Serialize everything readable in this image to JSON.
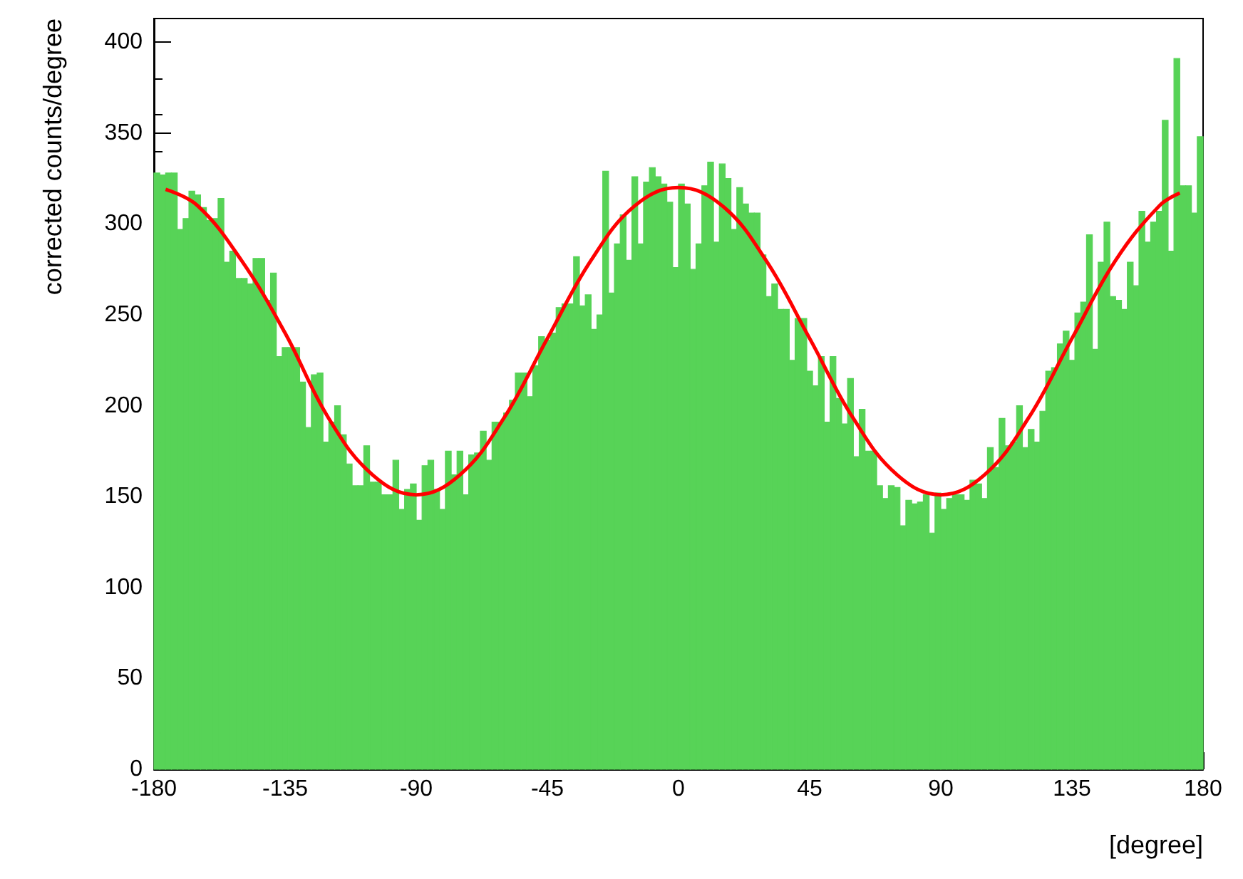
{
  "chart_data": {
    "type": "histogram",
    "xlabel": "[degree]",
    "ylabel": "corrected counts/degree",
    "bins": [
      -180,
      -178,
      -176,
      -174,
      -172,
      -170,
      -168,
      -166,
      -164,
      -162,
      -160,
      -158,
      -156,
      -154,
      -152,
      -150,
      -148,
      -146,
      -144,
      -142,
      -140,
      -138,
      -136,
      -134,
      -132,
      -130,
      -128,
      -126,
      -124,
      -122,
      -120,
      -118,
      -116,
      -114,
      -112,
      -110,
      -108,
      -106,
      -104,
      -102,
      -100,
      -98,
      -96,
      -94,
      -92,
      -90,
      -88,
      -86,
      -84,
      -82,
      -80,
      -78,
      -76,
      -74,
      -72,
      -70,
      -68,
      -66,
      -64,
      -62,
      -60,
      -58,
      -56,
      -54,
      -52,
      -50,
      -48,
      -46,
      -44,
      -42,
      -40,
      -38,
      -36,
      -34,
      -32,
      -30,
      -28,
      -26,
      -24,
      -22,
      -20,
      -18,
      -16,
      -14,
      -12,
      -10,
      -8,
      -6,
      -4,
      -2,
      0,
      2,
      4,
      6,
      8,
      10,
      12,
      14,
      16,
      18,
      20,
      22,
      24,
      26,
      28,
      30,
      32,
      34,
      36,
      38,
      40,
      42,
      44,
      46,
      48,
      50,
      52,
      54,
      56,
      58,
      60,
      62,
      64,
      66,
      68,
      70,
      72,
      74,
      76,
      78,
      80,
      82,
      84,
      86,
      88,
      90,
      92,
      94,
      96,
      98,
      100,
      102,
      104,
      106,
      108,
      110,
      112,
      114,
      116,
      118,
      120,
      122,
      124,
      126,
      128,
      130,
      132,
      134,
      136,
      138,
      140,
      142,
      144,
      146,
      148,
      150,
      152,
      154,
      156,
      158,
      160,
      162,
      164,
      166,
      168,
      170,
      172,
      174,
      176,
      178,
      180
    ],
    "values": [
      328,
      327,
      328,
      328,
      297,
      303,
      318,
      316,
      309,
      302,
      303,
      314,
      279,
      285,
      270,
      270,
      267,
      281,
      281,
      258,
      273,
      227,
      232,
      232,
      232,
      213,
      188,
      217,
      218,
      180,
      191,
      200,
      184,
      168,
      156,
      156,
      178,
      158,
      158,
      151,
      151,
      170,
      143,
      154,
      157,
      137,
      167,
      170,
      154,
      143,
      175,
      162,
      175,
      151,
      173,
      174,
      186,
      170,
      191,
      191,
      196,
      203,
      218,
      218,
      205,
      222,
      238,
      236,
      240,
      254,
      256,
      256,
      282,
      255,
      261,
      242,
      250,
      329,
      262,
      289,
      305,
      280,
      326,
      289,
      323,
      331,
      326,
      322,
      312,
      276,
      322,
      311,
      275,
      289,
      321,
      334,
      290,
      333,
      325,
      297,
      320,
      311,
      306,
      306,
      283,
      260,
      267,
      253,
      253,
      225,
      248,
      248,
      219,
      211,
      227,
      191,
      227,
      204,
      190,
      215,
      172,
      198,
      175,
      175,
      156,
      149,
      156,
      155,
      134,
      148,
      146,
      147,
      151,
      130,
      152,
      143,
      149,
      151,
      151,
      148,
      159,
      157,
      149,
      177,
      166,
      193,
      178,
      180,
      200,
      177,
      187,
      180,
      197,
      219,
      221,
      234,
      241,
      225,
      251,
      257,
      294,
      231,
      279,
      301,
      260,
      258,
      253,
      279,
      266,
      307,
      290,
      301,
      307,
      357,
      285,
      391,
      321,
      321,
      306,
      348
    ],
    "color": "#57d357",
    "series": [
      {
        "type": "line",
        "color": "#ff0000",
        "x": [
          -176,
          -165,
          -150,
          -135,
          -120,
          -105,
          -90,
          -75,
          -60,
          -45,
          -30,
          -15,
          0,
          15,
          30,
          45,
          60,
          75,
          90,
          105,
          120,
          135,
          150,
          165,
          172
        ],
        "values": [
          319,
          310,
          280,
          240,
          193,
          162,
          151,
          162,
          193,
          237,
          280,
          310,
          320,
          310,
          280,
          237,
          193,
          162,
          151,
          162,
          193,
          237,
          280,
          310,
          317
        ]
      }
    ],
    "xlim": [
      -180,
      180
    ],
    "xticks": [
      -180,
      -135,
      -90,
      -45,
      0,
      45,
      90,
      135,
      180
    ],
    "ylim": [
      0,
      413
    ],
    "yticks": [
      0,
      50,
      100,
      150,
      200,
      250,
      300,
      350,
      400
    ],
    "marker": "none"
  }
}
